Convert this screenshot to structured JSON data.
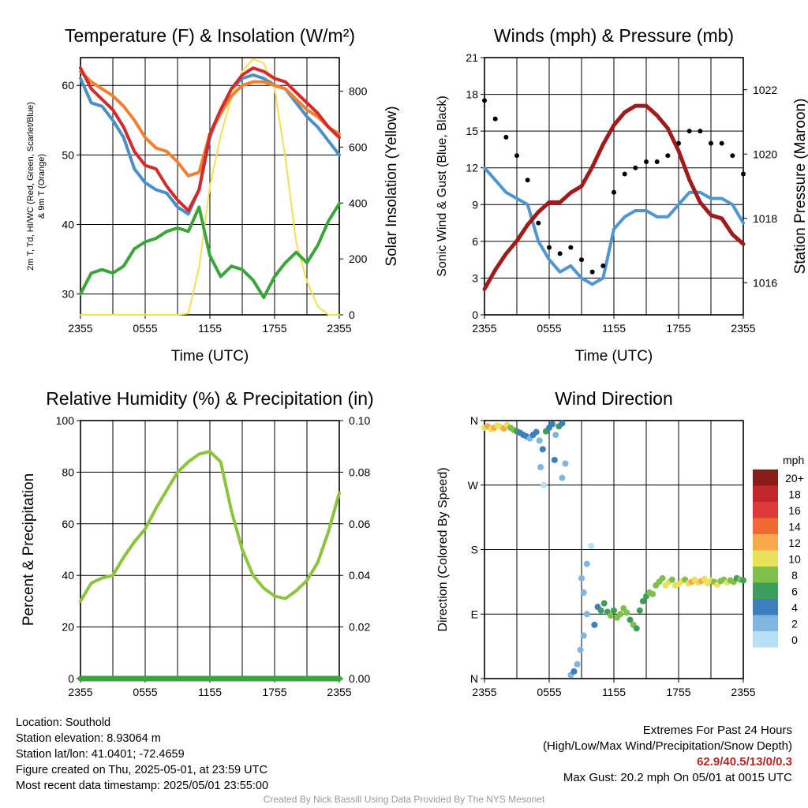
{
  "colors": {
    "temp_red": "#d42a2a",
    "dewpoint_green": "#3aa53a",
    "heat_index_blue": "#4a90c8",
    "temp9m_orange": "#f28030",
    "solar_yellow": "#f5e050",
    "wind_blue": "#4f95d0",
    "gust_black": "#000000",
    "pressure_maroon": "#a01c1c",
    "rh_green": "#8cc43c",
    "precip_green": "#3aa53a"
  },
  "chart_data": [
    {
      "id": "temperature",
      "type": "line",
      "title": "Temperature (F) & Insolation (W/m²)",
      "xlabel": "Time (UTC)",
      "ylabel": "2m T, Td, HI/WC (Red, Green, Scarlet/Blue) & 9m T (Orange)",
      "ylabel_line1": "2m T, Td, HI/WC (Red, Green, Scarlet/Blue)",
      "ylabel_line2": "& 9m T (Orange)",
      "y2label": "Solar Insolation (Yellow)",
      "x_ticks": [
        "2355",
        "0555",
        "1155",
        "1755",
        "2355"
      ],
      "x_range_hours": [
        0,
        24
      ],
      "ylim": [
        27,
        64
      ],
      "y_ticks": [
        30,
        40,
        50,
        60
      ],
      "y2lim": [
        0,
        920
      ],
      "y2_ticks": [
        0,
        200,
        400,
        600,
        800
      ],
      "x_hours": [
        0,
        1,
        2,
        3,
        4,
        5,
        6,
        7,
        8,
        9,
        10,
        11,
        12,
        13,
        14,
        15,
        16,
        17,
        18,
        19,
        20,
        21,
        22,
        23,
        24
      ],
      "series": [
        {
          "name": "2m T",
          "axis": "left",
          "color_key": "temp_red",
          "values": [
            62.5,
            59.5,
            58.0,
            56.5,
            54.0,
            50.5,
            48.5,
            48.0,
            45.5,
            43.5,
            42.0,
            45.0,
            53.0,
            56.5,
            59.5,
            61.5,
            62.5,
            62.0,
            61.0,
            60.5,
            59.0,
            57.5,
            56.0,
            54.0,
            52.5
          ]
        },
        {
          "name": "HI/WC",
          "axis": "left",
          "color_key": "heat_index_blue",
          "values": [
            61.0,
            57.5,
            57.0,
            55.0,
            52.5,
            48.0,
            46.0,
            45.0,
            44.5,
            42.5,
            41.5,
            45.0,
            52.5,
            56.5,
            59.5,
            61.0,
            61.5,
            61.0,
            60.0,
            59.5,
            57.5,
            55.5,
            54.0,
            52.0,
            50.0
          ]
        },
        {
          "name": "9m T",
          "axis": "left",
          "color_key": "temp9m_orange",
          "values": [
            62.0,
            60.5,
            59.5,
            58.5,
            57.0,
            55.0,
            52.5,
            51.0,
            50.5,
            49.0,
            47.0,
            47.5,
            53.0,
            56.0,
            58.5,
            60.0,
            60.5,
            60.5,
            60.0,
            59.5,
            58.0,
            56.5,
            55.5,
            54.0,
            53.0
          ]
        },
        {
          "name": "Td",
          "axis": "left",
          "color_key": "dewpoint_green",
          "values": [
            30.0,
            33.0,
            33.5,
            33.0,
            34.0,
            36.5,
            37.5,
            38.0,
            39.0,
            39.5,
            39.0,
            42.5,
            35.5,
            32.5,
            34.0,
            33.5,
            32.0,
            29.5,
            32.5,
            34.5,
            36.0,
            34.5,
            37.0,
            40.5,
            43.0
          ]
        },
        {
          "name": "Solar Insolation",
          "axis": "right",
          "color_key": "solar_yellow",
          "values": [
            0,
            0,
            0,
            0,
            0,
            0,
            0,
            0,
            0,
            0,
            5,
            170,
            460,
            640,
            780,
            870,
            915,
            900,
            810,
            560,
            260,
            120,
            30,
            0,
            0
          ]
        }
      ]
    },
    {
      "id": "winds",
      "type": "line",
      "title": "Winds (mph) & Pressure (mb)",
      "xlabel": "Time (UTC)",
      "ylabel": "Sonic Wind & Gust (Blue, Black)",
      "y2label": "Station Pressure (Maroon)",
      "x_ticks": [
        "2355",
        "0555",
        "1155",
        "1755",
        "2355"
      ],
      "x_range_hours": [
        0,
        24
      ],
      "ylim": [
        0,
        21
      ],
      "y_ticks": [
        0,
        3,
        6,
        9,
        12,
        15,
        18,
        21
      ],
      "y2lim": [
        1015.0,
        1023.0
      ],
      "y2_ticks": [
        1016,
        1018,
        1020,
        1022
      ],
      "x_hours": [
        0,
        1,
        2,
        3,
        4,
        5,
        6,
        7,
        8,
        9,
        10,
        11,
        12,
        13,
        14,
        15,
        16,
        17,
        18,
        19,
        20,
        21,
        22,
        23,
        24
      ],
      "series": [
        {
          "name": "Sonic Wind",
          "axis": "left",
          "color_key": "wind_blue",
          "values": [
            12.0,
            11.0,
            10.0,
            9.5,
            9.0,
            6.0,
            4.5,
            3.5,
            4.0,
            3.0,
            2.5,
            3.0,
            7.0,
            8.0,
            8.5,
            8.5,
            8.0,
            8.0,
            9.0,
            10.0,
            10.0,
            9.5,
            9.5,
            9.0,
            7.5
          ]
        },
        {
          "name": "Gust",
          "axis": "left",
          "color_key": "gust_black",
          "marker": "dot",
          "values": [
            17.5,
            16.0,
            14.5,
            13.0,
            11.0,
            7.5,
            5.5,
            5.0,
            5.5,
            4.5,
            3.5,
            4.0,
            10.0,
            11.5,
            12.0,
            12.5,
            12.5,
            13.0,
            14.0,
            15.0,
            15.0,
            14.0,
            14.0,
            13.0,
            11.5
          ]
        },
        {
          "name": "Station Pressure",
          "axis": "right",
          "color_key": "pressure_maroon",
          "values": [
            1015.8,
            1016.4,
            1016.9,
            1017.3,
            1017.8,
            1018.2,
            1018.5,
            1018.5,
            1018.8,
            1019.0,
            1019.6,
            1020.3,
            1020.9,
            1021.3,
            1021.5,
            1021.5,
            1021.2,
            1020.8,
            1020.1,
            1019.2,
            1018.5,
            1018.1,
            1018.0,
            1017.5,
            1017.2
          ]
        }
      ]
    },
    {
      "id": "humidity",
      "type": "line",
      "title": "Relative Humidity (%) & Precipitation (in)",
      "ylabel": "Percent & Precipitation",
      "x_ticks": [
        "2355",
        "0555",
        "1155",
        "1755",
        "2355"
      ],
      "x_range_hours": [
        0,
        24
      ],
      "ylim": [
        0,
        100
      ],
      "y_ticks": [
        0,
        20,
        40,
        60,
        80,
        100
      ],
      "y2lim": [
        0,
        0.1
      ],
      "y2_ticks": [
        "0.00",
        "0.02",
        "0.04",
        "0.06",
        "0.08",
        "0.10"
      ],
      "x_hours": [
        0,
        1,
        2,
        3,
        4,
        5,
        6,
        7,
        8,
        9,
        10,
        11,
        12,
        13,
        14,
        15,
        16,
        17,
        18,
        19,
        20,
        21,
        22,
        23,
        24
      ],
      "series": [
        {
          "name": "Relative Humidity",
          "axis": "left",
          "color_key": "rh_green",
          "values": [
            30,
            37,
            39,
            40,
            47,
            53,
            58,
            66,
            73,
            80,
            84,
            87,
            88,
            84,
            65,
            50,
            40,
            35,
            32,
            31,
            34,
            38,
            45,
            57,
            72
          ]
        },
        {
          "name": "Precipitation",
          "axis": "right",
          "color_key": "precip_green",
          "values": [
            0,
            0,
            0,
            0,
            0,
            0,
            0,
            0,
            0,
            0,
            0,
            0,
            0,
            0,
            0,
            0,
            0,
            0,
            0,
            0,
            0,
            0,
            0,
            0,
            0
          ]
        }
      ]
    },
    {
      "id": "wind_direction",
      "type": "scatter",
      "title": "Wind Direction",
      "ylabel": "Direction (Colored By Speed)",
      "x_ticks": [
        "2355",
        "0555",
        "1155",
        "1755",
        "2355"
      ],
      "x_range_hours": [
        0,
        24
      ],
      "y_ticks": [
        "N",
        "E",
        "S",
        "W",
        "N"
      ],
      "ylim_degrees": [
        0,
        360
      ],
      "legend_title": "mph",
      "legend_labels": [
        "20+",
        "18",
        "16",
        "14",
        "12",
        "10",
        "8",
        "6",
        "4",
        "2",
        "0"
      ],
      "legend_colors": [
        "#8b1a1a",
        "#c0272d",
        "#e0393a",
        "#ee6a30",
        "#f9a94a",
        "#e8e25a",
        "#7fbf4c",
        "#3c9e5a",
        "#3b7fbd",
        "#7fb5df",
        "#b8dff5"
      ],
      "points": [
        {
          "hour": 0.0,
          "dir": 350,
          "speed": 11
        },
        {
          "hour": 0.3,
          "dir": 352,
          "speed": 12
        },
        {
          "hour": 0.6,
          "dir": 348,
          "speed": 11
        },
        {
          "hour": 0.9,
          "dir": 350,
          "speed": 12
        },
        {
          "hour": 1.2,
          "dir": 353,
          "speed": 10
        },
        {
          "hour": 1.5,
          "dir": 351,
          "speed": 11
        },
        {
          "hour": 1.8,
          "dir": 349,
          "speed": 12
        },
        {
          "hour": 2.1,
          "dir": 354,
          "speed": 10
        },
        {
          "hour": 2.4,
          "dir": 350,
          "speed": 9
        },
        {
          "hour": 2.7,
          "dir": 347,
          "speed": 8
        },
        {
          "hour": 3.0,
          "dir": 345,
          "speed": 6
        },
        {
          "hour": 3.3,
          "dir": 343,
          "speed": 5
        },
        {
          "hour": 3.6,
          "dir": 340,
          "speed": 4
        },
        {
          "hour": 3.9,
          "dir": 338,
          "speed": 4
        },
        {
          "hour": 4.2,
          "dir": 335,
          "speed": 3
        },
        {
          "hour": 4.5,
          "dir": 340,
          "speed": 4
        },
        {
          "hour": 4.8,
          "dir": 344,
          "speed": 5
        },
        {
          "hour": 5.1,
          "dir": 332,
          "speed": 3
        },
        {
          "hour": 5.4,
          "dir": 320,
          "speed": 4
        },
        {
          "hour": 5.7,
          "dir": 345,
          "speed": 6
        },
        {
          "hour": 6.0,
          "dir": 350,
          "speed": 5
        },
        {
          "hour": 6.3,
          "dir": 355,
          "speed": 4
        },
        {
          "hour": 6.6,
          "dir": 340,
          "speed": 3
        },
        {
          "hour": 6.9,
          "dir": 352,
          "speed": 6
        },
        {
          "hour": 7.2,
          "dir": 356,
          "speed": 5
        },
        {
          "hour": 7.5,
          "dir": 300,
          "speed": 3
        },
        {
          "hour": 7.2,
          "dir": 280,
          "speed": 2
        },
        {
          "hour": 5.2,
          "dir": 295,
          "speed": 3
        },
        {
          "hour": 5.5,
          "dir": 270,
          "speed": 1
        },
        {
          "hour": 6.5,
          "dir": 305,
          "speed": 4
        },
        {
          "hour": 8.0,
          "dir": 5,
          "speed": 3
        },
        {
          "hour": 8.3,
          "dir": 10,
          "speed": 4
        },
        {
          "hour": 8.6,
          "dir": 20,
          "speed": 3
        },
        {
          "hour": 8.9,
          "dir": 40,
          "speed": 2
        },
        {
          "hour": 9.2,
          "dir": 60,
          "speed": 2
        },
        {
          "hour": 9.5,
          "dir": 90,
          "speed": 3
        },
        {
          "hour": 9.2,
          "dir": 120,
          "speed": 2
        },
        {
          "hour": 9.0,
          "dir": 140,
          "speed": 3
        },
        {
          "hour": 9.5,
          "dir": 160,
          "speed": 2
        },
        {
          "hour": 9.9,
          "dir": 185,
          "speed": 1
        },
        {
          "hour": 10.2,
          "dir": 75,
          "speed": 4
        },
        {
          "hour": 10.5,
          "dir": 100,
          "speed": 5
        },
        {
          "hour": 10.8,
          "dir": 95,
          "speed": 6
        },
        {
          "hour": 11.1,
          "dir": 105,
          "speed": 6
        },
        {
          "hour": 11.4,
          "dir": 93,
          "speed": 7
        },
        {
          "hour": 11.7,
          "dir": 88,
          "speed": 8
        },
        {
          "hour": 12.0,
          "dir": 95,
          "speed": 7
        },
        {
          "hour": 12.3,
          "dir": 85,
          "speed": 9
        },
        {
          "hour": 12.6,
          "dir": 90,
          "speed": 8
        },
        {
          "hour": 12.9,
          "dir": 98,
          "speed": 8
        },
        {
          "hour": 13.2,
          "dir": 92,
          "speed": 9
        },
        {
          "hour": 13.5,
          "dir": 82,
          "speed": 7
        },
        {
          "hour": 13.8,
          "dir": 75,
          "speed": 8
        },
        {
          "hour": 14.1,
          "dir": 70,
          "speed": 7
        },
        {
          "hour": 14.4,
          "dir": 95,
          "speed": 6
        },
        {
          "hour": 14.7,
          "dir": 108,
          "speed": 7
        },
        {
          "hour": 15.0,
          "dir": 115,
          "speed": 7
        },
        {
          "hour": 15.3,
          "dir": 120,
          "speed": 8
        },
        {
          "hour": 15.6,
          "dir": 118,
          "speed": 9
        },
        {
          "hour": 15.9,
          "dir": 130,
          "speed": 9
        },
        {
          "hour": 16.2,
          "dir": 135,
          "speed": 8
        },
        {
          "hour": 16.5,
          "dir": 140,
          "speed": 9
        },
        {
          "hour": 16.8,
          "dir": 130,
          "speed": 10
        },
        {
          "hour": 17.1,
          "dir": 135,
          "speed": 10
        },
        {
          "hour": 17.4,
          "dir": 138,
          "speed": 9
        },
        {
          "hour": 17.7,
          "dir": 130,
          "speed": 10
        },
        {
          "hour": 18.0,
          "dir": 132,
          "speed": 11
        },
        {
          "hour": 18.3,
          "dir": 136,
          "speed": 10
        },
        {
          "hour": 18.6,
          "dir": 138,
          "speed": 9
        },
        {
          "hour": 18.9,
          "dir": 133,
          "speed": 11
        },
        {
          "hour": 19.2,
          "dir": 135,
          "speed": 12
        },
        {
          "hour": 19.5,
          "dir": 138,
          "speed": 10
        },
        {
          "hour": 19.8,
          "dir": 134,
          "speed": 11
        },
        {
          "hour": 20.1,
          "dir": 136,
          "speed": 12
        },
        {
          "hour": 20.4,
          "dir": 139,
          "speed": 10
        },
        {
          "hour": 20.7,
          "dir": 133,
          "speed": 11
        },
        {
          "hour": 21.0,
          "dir": 137,
          "speed": 10
        },
        {
          "hour": 21.3,
          "dir": 135,
          "speed": 9
        },
        {
          "hour": 21.6,
          "dir": 131,
          "speed": 10
        },
        {
          "hour": 21.9,
          "dir": 136,
          "speed": 9
        },
        {
          "hour": 22.2,
          "dir": 138,
          "speed": 8
        },
        {
          "hour": 22.5,
          "dir": 134,
          "speed": 10
        },
        {
          "hour": 22.8,
          "dir": 137,
          "speed": 9
        },
        {
          "hour": 23.1,
          "dir": 135,
          "speed": 8
        },
        {
          "hour": 23.4,
          "dir": 140,
          "speed": 7
        },
        {
          "hour": 23.7,
          "dir": 138,
          "speed": 8
        },
        {
          "hour": 24.0,
          "dir": 137,
          "speed": 7
        }
      ]
    }
  ],
  "footer": {
    "location": "Location: Southold",
    "elevation": "Station elevation: 8.93064 m",
    "latlon": "Station lat/lon: 41.0401; -72.4659",
    "created": "Figure created on Thu, 2025-05-01, at 23:59 UTC",
    "recent": "Most recent data timestamp: 2025/05/01 23:55:00",
    "extremes_title": "Extremes For Past 24 Hours",
    "extremes_legend": "(High/Low/Max Wind/Precipitation/Snow Depth)",
    "extremes_values": "62.9/40.5/13/0/0.3",
    "max_gust": "Max Gust: 20.2 mph On 05/01 at 0015 UTC",
    "credit": "Created By Nick Bassill Using Data Provided By The NYS Mesonet"
  }
}
